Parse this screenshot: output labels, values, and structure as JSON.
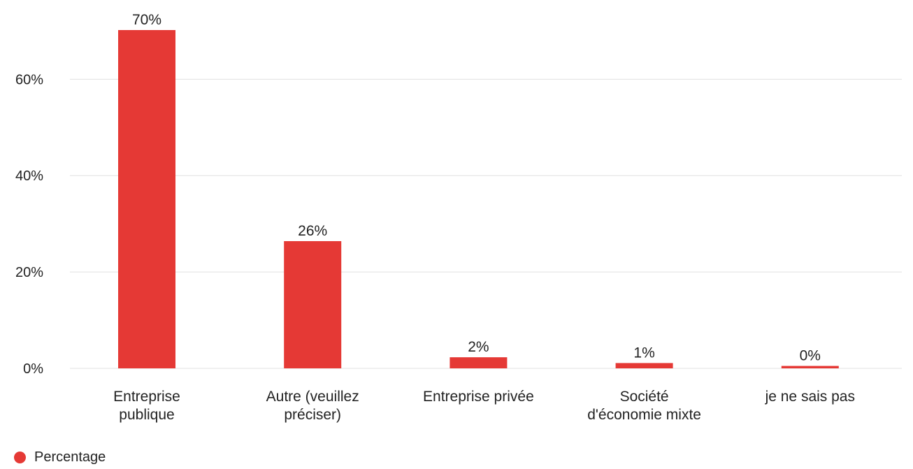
{
  "colors": {
    "series": "#e53935",
    "grid": "#e0e0e0",
    "text": "#222222"
  },
  "chart_data": {
    "type": "bar",
    "categories": [
      [
        "Entreprise",
        "publique"
      ],
      [
        "Autre (veuillez",
        "préciser)"
      ],
      [
        "Entreprise privée"
      ],
      [
        "Société",
        "d'économie mixte"
      ],
      [
        "je ne sais pas"
      ]
    ],
    "series": [
      {
        "name": "Percentage",
        "values": [
          70.2,
          26.4,
          2.3,
          1.1,
          0.5
        ],
        "data_labels": [
          "70%",
          "26%",
          "2%",
          "1%",
          "0%"
        ]
      }
    ],
    "yticks": [
      0,
      20,
      40,
      60
    ],
    "ytick_labels": [
      "0%",
      "20%",
      "40%",
      "60%"
    ],
    "ylim": [
      0,
      70.2
    ],
    "grid": true,
    "legend": {
      "position": "bottom-left",
      "marker": "circle"
    }
  }
}
